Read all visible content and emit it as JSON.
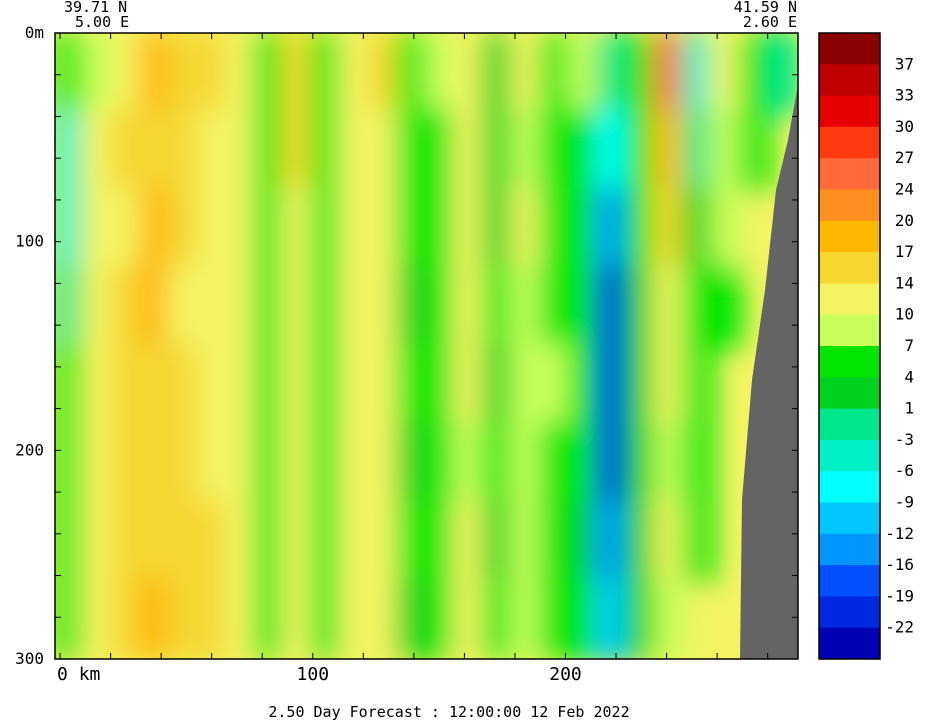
{
  "header": {
    "left_lat": "39.71 N",
    "left_lon": "5.00 E",
    "right_lat": "41.59 N",
    "right_lon": "2.60 E"
  },
  "footer": {
    "forecast_label": "2.50 Day Forecast : 12:00:00  12 Feb 2022"
  },
  "chart_data": {
    "type": "heatmap",
    "title": "",
    "xlabel": "km",
    "ylabel": "",
    "x_unit": "km",
    "xlim": [
      -2,
      292
    ],
    "ylim": [
      0,
      300
    ],
    "y_inverted": true,
    "x_ticks": [
      {
        "value": 0,
        "label": "0  km"
      },
      {
        "value": 100,
        "label": "100"
      },
      {
        "value": 200,
        "label": "200"
      }
    ],
    "y_ticks": [
      {
        "value": 0,
        "label": "0m"
      },
      {
        "value": 100,
        "label": "100"
      },
      {
        "value": 200,
        "label": "200"
      },
      {
        "value": 300,
        "label": "300"
      }
    ],
    "colorbar": {
      "labels": [
        "37",
        "33",
        "30",
        "27",
        "24",
        "20",
        "17",
        "14",
        "10",
        "7",
        "4",
        "1",
        "-3",
        "-6",
        "-9",
        "-12",
        "-16",
        "-19",
        "-22"
      ],
      "colors": [
        "#8b0000",
        "#c00000",
        "#e60000",
        "#ff3a10",
        "#ff6a3a",
        "#ff9020",
        "#ffb800",
        "#f5d730",
        "#f4f462",
        "#c8ff5a",
        "#00e600",
        "#00d21e",
        "#00e68c",
        "#00f0c8",
        "#00ffff",
        "#00c8ff",
        "#0096ff",
        "#0050ff",
        "#0028e0",
        "#0000b4"
      ]
    },
    "land_color": "#646464",
    "values": [
      [
        6,
        7,
        13,
        18,
        15,
        14,
        12,
        5,
        16,
        5,
        10,
        14,
        5,
        7,
        12,
        3,
        10,
        5,
        7,
        0,
        6,
        24,
        -6,
        10,
        6,
        0
      ],
      [
        -6,
        10,
        14,
        16,
        14,
        13,
        12,
        4,
        15,
        4,
        10,
        13,
        5,
        6,
        12,
        2,
        9,
        5,
        6,
        -8,
        5,
        18,
        -2,
        8,
        5,
        null
      ],
      [
        -4,
        12,
        13,
        17,
        14,
        12,
        11,
        5,
        13,
        6,
        11,
        12,
        4,
        6,
        10,
        3,
        10,
        6,
        5,
        -16,
        4,
        14,
        2,
        7,
        null,
        null
      ],
      [
        0,
        11,
        14,
        17,
        13,
        13,
        11,
        4,
        12,
        5,
        12,
        13,
        3,
        5,
        11,
        4,
        9,
        6,
        4,
        -20,
        3,
        12,
        4,
        6,
        null,
        null
      ],
      [
        4,
        13,
        15,
        16,
        14,
        12,
        10,
        5,
        11,
        4,
        13,
        12,
        4,
        6,
        10,
        3,
        8,
        7,
        5,
        -22,
        2,
        10,
        5,
        null,
        null,
        null
      ],
      [
        5,
        12,
        14,
        15,
        15,
        13,
        11,
        4,
        12,
        6,
        12,
        11,
        3,
        5,
        9,
        4,
        9,
        6,
        4,
        -20,
        3,
        9,
        6,
        null,
        null,
        null
      ],
      [
        6,
        13,
        15,
        16,
        14,
        14,
        12,
        5,
        13,
        5,
        11,
        12,
        4,
        6,
        10,
        3,
        8,
        5,
        3,
        -16,
        2,
        10,
        5,
        null,
        null,
        null
      ],
      [
        5,
        12,
        14,
        17,
        15,
        15,
        13,
        4,
        12,
        6,
        10,
        13,
        3,
        5,
        11,
        4,
        9,
        6,
        4,
        -12,
        3,
        8,
        null,
        null,
        null,
        null
      ]
    ]
  }
}
